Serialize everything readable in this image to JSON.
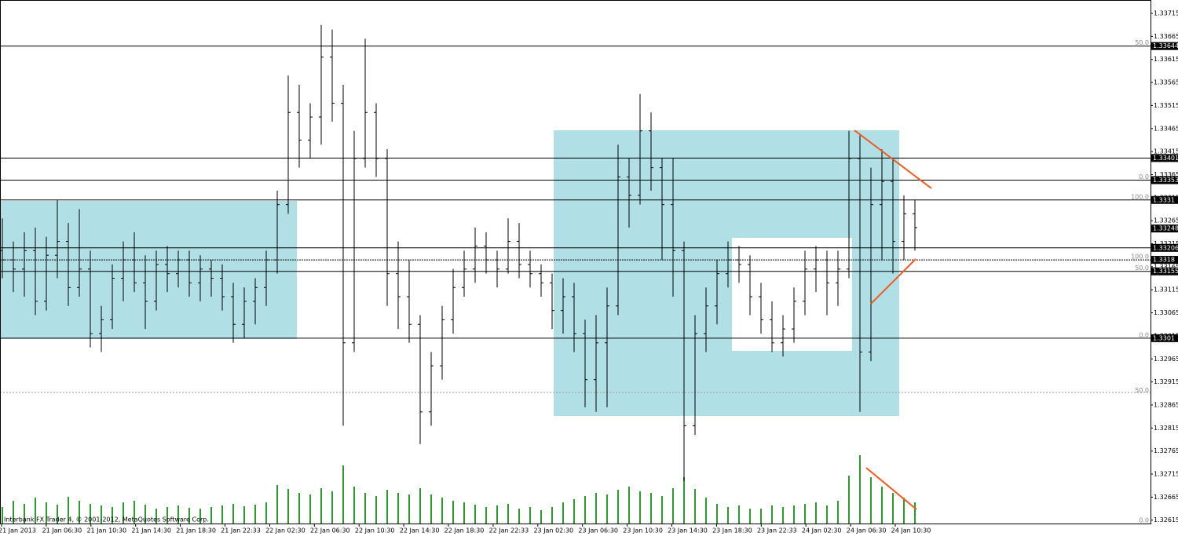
{
  "chart_data": {
    "type": "ohlc",
    "footer": "Interbank FX Trader 4, © 2001-2012, MetaQuotes Software Corp.",
    "ylim": [
      1.32606,
      1.33744
    ],
    "yticks": [
      1.33715,
      1.33665,
      1.33615,
      1.33565,
      1.33515,
      1.33465,
      1.33415,
      1.33365,
      1.33315,
      1.33265,
      1.33215,
      1.33165,
      1.33115,
      1.33065,
      1.33015,
      1.32965,
      1.32915,
      1.32865,
      1.32815,
      1.32765,
      1.32715,
      1.32665,
      1.32615
    ],
    "time_labels": [
      "21 Jan 2013",
      "21 Jan 06:30",
      "21 Jan 10:30",
      "21 Jan 14:30",
      "21 Jan 18:30",
      "21 Jan 22:33",
      "22 Jan 02:30",
      "22 Jan 06:30",
      "22 Jan 10:30",
      "22 Jan 14:30",
      "22 Jan 18:30",
      "22 Jan 22:33",
      "23 Jan 02:30",
      "23 Jan 06:30",
      "23 Jan 10:30",
      "23 Jan 14:30",
      "23 Jan 18:30",
      "23 Jan 22:33",
      "24 Jan 02:30",
      "24 Jan 06:30",
      "24 Jan 10:30"
    ],
    "levels": [
      1.33644,
      1.33401,
      1.33353,
      1.3331,
      1.33206,
      1.33155,
      1.3301
    ],
    "dotted_levels": [
      1.3318
    ],
    "bid": 1.33248,
    "fib_labels": [
      {
        "text": "50.0",
        "price": 1.33644
      },
      {
        "text": "0.0",
        "price": 1.33353
      },
      {
        "text": "100.0",
        "price": 1.3331
      },
      {
        "text": "100.0",
        "price": 1.3318
      },
      {
        "text": "50.0",
        "price": 1.33155
      },
      {
        "text": "0.0",
        "price": 1.3301
      },
      {
        "text": "50.0",
        "price": 1.3289
      }
    ],
    "volume_zero_label": "0.0",
    "bar_color": "#000000",
    "volume_color": "#2e9a2e",
    "volume_ylim": [
      0,
      100
    ],
    "ohlc": [
      [
        1.332,
        1.3327,
        1.3314,
        1.3318
      ],
      [
        1.3318,
        1.3322,
        1.3311,
        1.3316
      ],
      [
        1.3316,
        1.3324,
        1.331,
        1.332
      ],
      [
        1.332,
        1.3325,
        1.3306,
        1.3309
      ],
      [
        1.3309,
        1.3323,
        1.3307,
        1.3319
      ],
      [
        1.3319,
        1.3331,
        1.3314,
        1.3322
      ],
      [
        1.3322,
        1.3326,
        1.3308,
        1.3312
      ],
      [
        1.3312,
        1.3329,
        1.331,
        1.3316
      ],
      [
        1.3316,
        1.332,
        1.3299,
        1.3302
      ],
      [
        1.3302,
        1.3308,
        1.3298,
        1.3305
      ],
      [
        1.3305,
        1.3317,
        1.3303,
        1.3314
      ],
      [
        1.3314,
        1.3322,
        1.3309,
        1.3318
      ],
      [
        1.3318,
        1.3324,
        1.3311,
        1.3313
      ],
      [
        1.3313,
        1.3319,
        1.3303,
        1.3309
      ],
      [
        1.3309,
        1.332,
        1.3307,
        1.3317
      ],
      [
        1.3317,
        1.3321,
        1.3311,
        1.3315
      ],
      [
        1.3315,
        1.332,
        1.3312,
        1.3318
      ],
      [
        1.3318,
        1.332,
        1.331,
        1.3313
      ],
      [
        1.3313,
        1.3319,
        1.3309,
        1.3316
      ],
      [
        1.3316,
        1.3318,
        1.331,
        1.3314
      ],
      [
        1.3314,
        1.3317,
        1.3307,
        1.331
      ],
      [
        1.331,
        1.3313,
        1.33,
        1.3304
      ],
      [
        1.3304,
        1.3312,
        1.3301,
        1.3309
      ],
      [
        1.3309,
        1.3314,
        1.3304,
        1.3312
      ],
      [
        1.3312,
        1.332,
        1.3308,
        1.3318
      ],
      [
        1.3318,
        1.3333,
        1.3315,
        1.333
      ],
      [
        1.333,
        1.3358,
        1.3328,
        1.335
      ],
      [
        1.335,
        1.3356,
        1.3338,
        1.3344
      ],
      [
        1.3344,
        1.3352,
        1.334,
        1.3349
      ],
      [
        1.3349,
        1.3369,
        1.3343,
        1.3362
      ],
      [
        1.3362,
        1.3368,
        1.3348,
        1.3352
      ],
      [
        1.3352,
        1.3356,
        1.3282,
        1.33
      ],
      [
        1.33,
        1.3346,
        1.3298,
        1.334
      ],
      [
        1.334,
        1.3366,
        1.3338,
        1.335
      ],
      [
        1.335,
        1.3352,
        1.3336,
        1.334
      ],
      [
        1.334,
        1.3342,
        1.3308,
        1.3315
      ],
      [
        1.3315,
        1.3322,
        1.3303,
        1.331
      ],
      [
        1.331,
        1.3318,
        1.33,
        1.3304
      ],
      [
        1.3304,
        1.3306,
        1.3278,
        1.3285
      ],
      [
        1.3285,
        1.3298,
        1.3282,
        1.3295
      ],
      [
        1.3295,
        1.3308,
        1.3292,
        1.3305
      ],
      [
        1.3305,
        1.3316,
        1.3302,
        1.3312
      ],
      [
        1.3312,
        1.332,
        1.331,
        1.3316
      ],
      [
        1.3316,
        1.3325,
        1.3313,
        1.3321
      ],
      [
        1.3321,
        1.3324,
        1.3315,
        1.3318
      ],
      [
        1.3318,
        1.332,
        1.3312,
        1.3316
      ],
      [
        1.3316,
        1.3327,
        1.3315,
        1.3322
      ],
      [
        1.3322,
        1.3326,
        1.3314,
        1.3317
      ],
      [
        1.3317,
        1.332,
        1.3312,
        1.3315
      ],
      [
        1.3315,
        1.3317,
        1.331,
        1.3313
      ],
      [
        1.3313,
        1.3315,
        1.3303,
        1.3307
      ],
      [
        1.3307,
        1.3314,
        1.3302,
        1.331
      ],
      [
        1.331,
        1.3313,
        1.3298,
        1.3302
      ],
      [
        1.3302,
        1.3305,
        1.3286,
        1.3292
      ],
      [
        1.3292,
        1.3306,
        1.3285,
        1.33
      ],
      [
        1.33,
        1.3312,
        1.3286,
        1.3308
      ],
      [
        1.3308,
        1.3343,
        1.3306,
        1.3336
      ],
      [
        1.3336,
        1.334,
        1.3325,
        1.3332
      ],
      [
        1.3332,
        1.3354,
        1.333,
        1.3346
      ],
      [
        1.3346,
        1.335,
        1.3333,
        1.3338
      ],
      [
        1.3338,
        1.334,
        1.3318,
        1.333
      ],
      [
        1.333,
        1.334,
        1.331,
        1.332
      ],
      [
        1.332,
        1.3322,
        1.327,
        1.3282
      ],
      [
        1.3282,
        1.3306,
        1.328,
        1.3302
      ],
      [
        1.3302,
        1.3312,
        1.3298,
        1.3308
      ],
      [
        1.3308,
        1.3318,
        1.3304,
        1.3315
      ],
      [
        1.3315,
        1.3322,
        1.3312,
        1.3318
      ],
      [
        1.3318,
        1.3321,
        1.3313,
        1.3317
      ],
      [
        1.3317,
        1.3319,
        1.3306,
        1.331
      ],
      [
        1.331,
        1.3313,
        1.3302,
        1.3305
      ],
      [
        1.3305,
        1.3309,
        1.3298,
        1.33
      ],
      [
        1.33,
        1.3306,
        1.3297,
        1.3303
      ],
      [
        1.3303,
        1.3312,
        1.33,
        1.3309
      ],
      [
        1.3309,
        1.332,
        1.3306,
        1.3316
      ],
      [
        1.3316,
        1.3321,
        1.3311,
        1.3318
      ],
      [
        1.3318,
        1.332,
        1.3306,
        1.3313
      ],
      [
        1.3313,
        1.332,
        1.3308,
        1.3316
      ],
      [
        1.3316,
        1.3346,
        1.3314,
        1.334
      ],
      [
        1.334,
        1.3345,
        1.3285,
        1.3298
      ],
      [
        1.3298,
        1.3338,
        1.3296,
        1.333
      ],
      [
        1.333,
        1.3342,
        1.3318,
        1.3335
      ],
      [
        1.3335,
        1.334,
        1.3315,
        1.3322
      ],
      [
        1.3322,
        1.3332,
        1.3318,
        1.3328
      ],
      [
        1.3328,
        1.3331,
        1.332,
        1.3325
      ]
    ],
    "volumes": [
      22,
      30,
      26,
      34,
      28,
      25,
      35,
      30,
      26,
      24,
      22,
      28,
      30,
      25,
      20,
      22,
      24,
      21,
      20,
      22,
      24,
      26,
      23,
      25,
      28,
      50,
      45,
      40,
      38,
      46,
      42,
      75,
      48,
      40,
      36,
      44,
      40,
      38,
      46,
      38,
      34,
      30,
      28,
      25,
      22,
      24,
      26,
      20,
      22,
      18,
      22,
      28,
      32,
      36,
      40,
      38,
      44,
      48,
      42,
      40,
      36,
      46,
      60,
      45,
      34,
      26,
      22,
      24,
      20,
      20,
      24,
      22,
      24,
      26,
      28,
      24,
      30,
      62,
      88,
      60,
      48,
      40,
      34,
      28
    ]
  }
}
